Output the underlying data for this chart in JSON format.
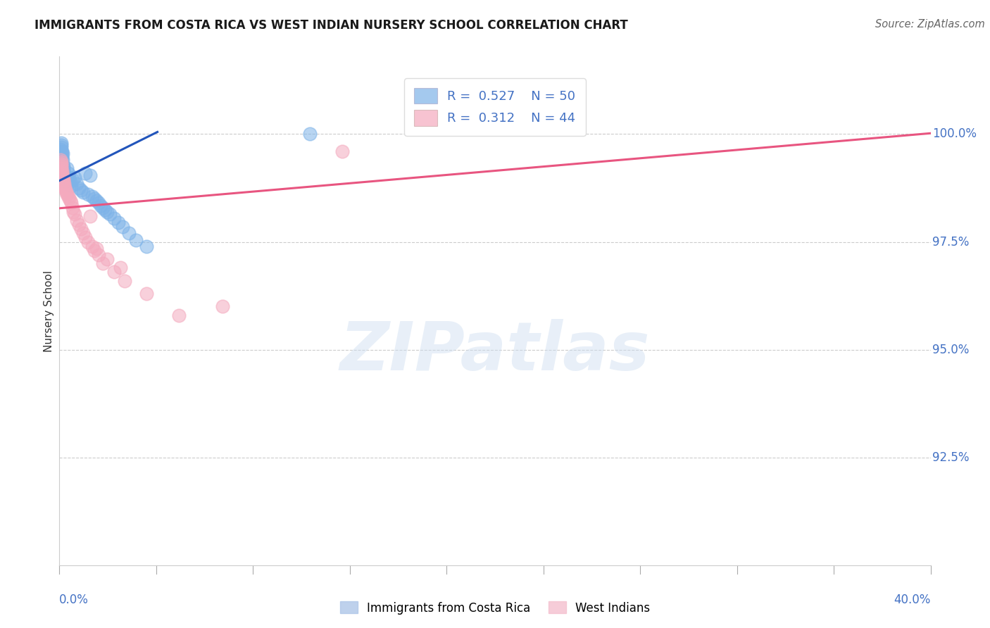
{
  "title": "IMMIGRANTS FROM COSTA RICA VS WEST INDIAN NURSERY SCHOOL CORRELATION CHART",
  "source": "Source: ZipAtlas.com",
  "ylabel": "Nursery School",
  "yticks": [
    92.5,
    95.0,
    97.5,
    100.0
  ],
  "xlim": [
    0.0,
    40.0
  ],
  "ylim": [
    90.0,
    101.8
  ],
  "blue_R": "0.527",
  "blue_N": "50",
  "pink_R": "0.312",
  "pink_N": "44",
  "blue_color": "#7EB3E8",
  "pink_color": "#F4AABE",
  "trendline_blue": "#2255BB",
  "trendline_pink": "#E85580",
  "blue_label": "Immigrants from Costa Rica",
  "pink_label": "West Indians",
  "watermark": "ZIPatlas",
  "blue_trendline_x0": 0.0,
  "blue_trendline_y0": 98.92,
  "blue_trendline_x1": 4.5,
  "blue_trendline_y1": 100.05,
  "pink_trendline_x0": 0.0,
  "pink_trendline_y0": 98.28,
  "pink_trendline_x1": 40.0,
  "pink_trendline_y1": 100.02,
  "blue_scatter_x": [
    0.05,
    0.07,
    0.08,
    0.09,
    0.1,
    0.1,
    0.11,
    0.12,
    0.13,
    0.14,
    0.15,
    0.16,
    0.17,
    0.18,
    0.19,
    0.2,
    0.22,
    0.25,
    0.28,
    0.3,
    0.35,
    0.4,
    0.45,
    0.5,
    0.55,
    0.6,
    0.7,
    0.8,
    0.9,
    1.0,
    1.1,
    1.2,
    1.3,
    1.4,
    1.5,
    1.6,
    1.7,
    1.8,
    1.9,
    2.0,
    2.1,
    2.2,
    2.3,
    2.5,
    2.7,
    2.9,
    3.2,
    3.5,
    4.0,
    11.5
  ],
  "blue_scatter_y": [
    99.65,
    99.7,
    99.6,
    99.55,
    99.75,
    99.8,
    99.5,
    99.6,
    99.45,
    99.55,
    99.4,
    99.3,
    99.25,
    99.2,
    99.15,
    99.1,
    99.05,
    99.0,
    98.95,
    98.9,
    99.2,
    99.1,
    99.0,
    98.9,
    98.8,
    98.95,
    99.0,
    98.85,
    98.75,
    98.7,
    98.65,
    99.1,
    98.6,
    99.05,
    98.55,
    98.5,
    98.45,
    98.4,
    98.35,
    98.3,
    98.25,
    98.2,
    98.15,
    98.05,
    97.95,
    97.85,
    97.7,
    97.55,
    97.4,
    100.0
  ],
  "pink_scatter_x": [
    0.05,
    0.07,
    0.08,
    0.09,
    0.1,
    0.11,
    0.12,
    0.13,
    0.15,
    0.17,
    0.18,
    0.2,
    0.22,
    0.25,
    0.28,
    0.3,
    0.35,
    0.4,
    0.45,
    0.5,
    0.55,
    0.6,
    0.65,
    0.7,
    0.8,
    0.9,
    1.0,
    1.1,
    1.2,
    1.3,
    1.5,
    1.8,
    2.0,
    2.5,
    3.0,
    4.0,
    5.5,
    7.5,
    1.6,
    2.2,
    2.8,
    13.0,
    1.4,
    1.7
  ],
  "pink_scatter_y": [
    99.4,
    99.35,
    99.3,
    99.25,
    99.2,
    99.15,
    99.1,
    99.05,
    99.0,
    98.95,
    98.9,
    98.85,
    98.8,
    98.75,
    98.7,
    98.65,
    98.6,
    98.55,
    98.5,
    98.45,
    98.4,
    98.3,
    98.2,
    98.15,
    98.0,
    97.9,
    97.8,
    97.7,
    97.6,
    97.5,
    97.4,
    97.2,
    97.0,
    96.8,
    96.6,
    96.3,
    95.8,
    96.0,
    97.3,
    97.1,
    96.9,
    99.6,
    98.1,
    97.35
  ]
}
